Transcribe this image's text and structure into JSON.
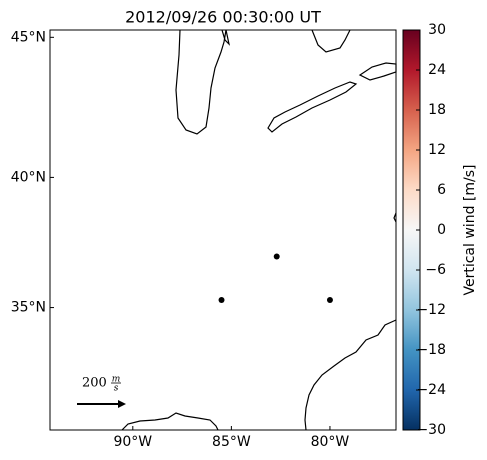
{
  "chart_data": {
    "type": "scatter",
    "projection": "mercator",
    "title": "2012/09/26 00:30:00 UT",
    "x": [
      -82.7,
      -85.5,
      -80.0
    ],
    "values": [
      37.0,
      35.3,
      35.3
    ],
    "color": "#000000",
    "xlim": [
      -94.2,
      -76.65
    ],
    "ylim": [
      30.0,
      45.25
    ],
    "xticks": [
      {
        "value": -90,
        "label": "90°W"
      },
      {
        "value": -85,
        "label": "85°W"
      },
      {
        "value": -80,
        "label": "80°W"
      }
    ],
    "yticks": [
      {
        "value": 35,
        "label": "35°N"
      },
      {
        "value": 40,
        "label": "40°N"
      },
      {
        "value": 45,
        "label": "45°N"
      }
    ],
    "colorbar": {
      "label": "Vertical wind [m/s]",
      "lim": [
        -30,
        30
      ],
      "colormap": [
        "#053061",
        "#2166ac",
        "#4393c3",
        "#92c5de",
        "#d1e5f0",
        "#f7f7f7",
        "#fddbc7",
        "#f4a582",
        "#d6604d",
        "#b2182b",
        "#67001f"
      ],
      "ticks": [
        {
          "value": -30,
          "label": "−30"
        },
        {
          "value": -24,
          "label": "−24"
        },
        {
          "value": -18,
          "label": "−18"
        },
        {
          "value": -12,
          "label": "−12"
        },
        {
          "value": -6,
          "label": "−6"
        },
        0,
        6,
        12,
        18,
        24,
        30
      ]
    },
    "quiver_key": {
      "value": "200",
      "unit_num": "m",
      "unit_den": "s"
    }
  }
}
